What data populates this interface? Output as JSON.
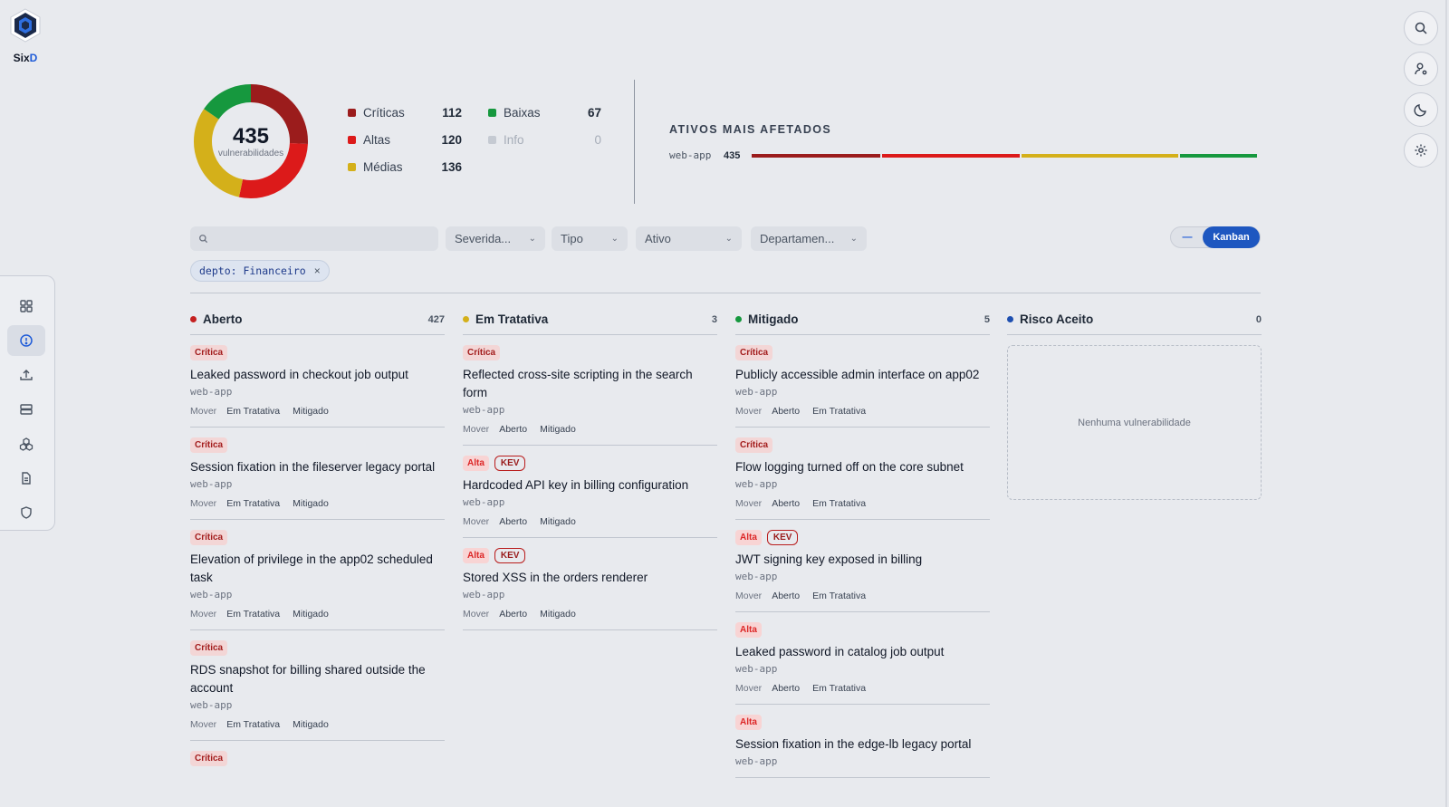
{
  "brand": {
    "name_a": "Six",
    "name_b": "D"
  },
  "summary": {
    "total": "435",
    "total_label": "vulnerabilidades",
    "severities": [
      {
        "label": "Críticas",
        "count": "112",
        "color": "#9b1c1c"
      },
      {
        "label": "Altas",
        "count": "120",
        "color": "#dc1a1a"
      },
      {
        "label": "Médias",
        "count": "136",
        "color": "#d4b01a"
      },
      {
        "label": "Baixas",
        "count": "67",
        "color": "#16983e"
      },
      {
        "label": "Info",
        "count": "0",
        "color": "#b9bec8"
      }
    ]
  },
  "assets": {
    "title": "ATIVOS MAIS AFETADOS",
    "rows": [
      {
        "name": "web-app",
        "count": "435",
        "critical": 112,
        "high": 120,
        "medium": 136,
        "low": 67
      }
    ]
  },
  "filters": {
    "search_placeholder": "",
    "severity": "Severida...",
    "type": "Tipo",
    "asset": "Ativo",
    "department": "Departamen...",
    "view_list": "—",
    "view_kanban": "Kanban",
    "active_chip": "depto: Financeiro",
    "chip_close": "×"
  },
  "labels": {
    "move": "Mover",
    "empty": "Nenhuma vulnerabilidade"
  },
  "columns": [
    {
      "title": "Aberto",
      "count": "427",
      "color": "#c42020",
      "cards": [
        {
          "severity": "Crítica",
          "sev_class": "b-crit",
          "kev": false,
          "title": "Leaked password in checkout job output",
          "asset": "web-app",
          "moves": [
            "Em Tratativa",
            "Mitigado"
          ]
        },
        {
          "severity": "Crítica",
          "sev_class": "b-crit",
          "kev": false,
          "title": "Session fixation in the fileserver legacy portal",
          "asset": "web-app",
          "moves": [
            "Em Tratativa",
            "Mitigado"
          ]
        },
        {
          "severity": "Crítica",
          "sev_class": "b-crit",
          "kev": false,
          "title": "Elevation of privilege in the app02 scheduled task",
          "asset": "web-app",
          "moves": [
            "Em Tratativa",
            "Mitigado"
          ]
        },
        {
          "severity": "Crítica",
          "sev_class": "b-crit",
          "kev": false,
          "title": "RDS snapshot for billing shared outside the account",
          "asset": "web-app",
          "moves": [
            "Em Tratativa",
            "Mitigado"
          ]
        },
        {
          "severity": "Crítica",
          "sev_class": "b-crit",
          "kev": false,
          "title": "",
          "asset": "",
          "moves": []
        }
      ]
    },
    {
      "title": "Em Tratativa",
      "count": "3",
      "color": "#d4b01a",
      "cards": [
        {
          "severity": "Crítica",
          "sev_class": "b-crit",
          "kev": false,
          "title": "Reflected cross-site scripting in the search form",
          "asset": "web-app",
          "moves": [
            "Aberto",
            "Mitigado"
          ]
        },
        {
          "severity": "Alta",
          "sev_class": "b-alta",
          "kev": true,
          "kev_label": "KEV",
          "title": "Hardcoded API key in billing configuration",
          "asset": "web-app",
          "moves": [
            "Aberto",
            "Mitigado"
          ]
        },
        {
          "severity": "Alta",
          "sev_class": "b-alta",
          "kev": true,
          "kev_label": "KEV",
          "title": "Stored XSS in the orders renderer",
          "asset": "web-app",
          "moves": [
            "Aberto",
            "Mitigado"
          ]
        }
      ]
    },
    {
      "title": "Mitigado",
      "count": "5",
      "color": "#16983e",
      "cards": [
        {
          "severity": "Crítica",
          "sev_class": "b-crit",
          "kev": false,
          "title": "Publicly accessible admin interface on app02",
          "asset": "web-app",
          "moves": [
            "Aberto",
            "Em Tratativa"
          ]
        },
        {
          "severity": "Crítica",
          "sev_class": "b-crit",
          "kev": false,
          "title": "Flow logging turned off on the core subnet",
          "asset": "web-app",
          "moves": [
            "Aberto",
            "Em Tratativa"
          ]
        },
        {
          "severity": "Alta",
          "sev_class": "b-alta",
          "kev": true,
          "kev_label": "KEV",
          "title": "JWT signing key exposed in billing",
          "asset": "web-app",
          "moves": [
            "Aberto",
            "Em Tratativa"
          ]
        },
        {
          "severity": "Alta",
          "sev_class": "b-alta",
          "kev": false,
          "title": "Leaked password in catalog job output",
          "asset": "web-app",
          "moves": [
            "Aberto",
            "Em Tratativa"
          ]
        },
        {
          "severity": "Alta",
          "sev_class": "b-alta",
          "kev": false,
          "title": "Session fixation in the edge-lb legacy portal",
          "asset": "web-app",
          "moves": []
        }
      ]
    },
    {
      "title": "Risco Aceito",
      "count": "0",
      "color": "#1e4fb0",
      "cards": []
    }
  ]
}
